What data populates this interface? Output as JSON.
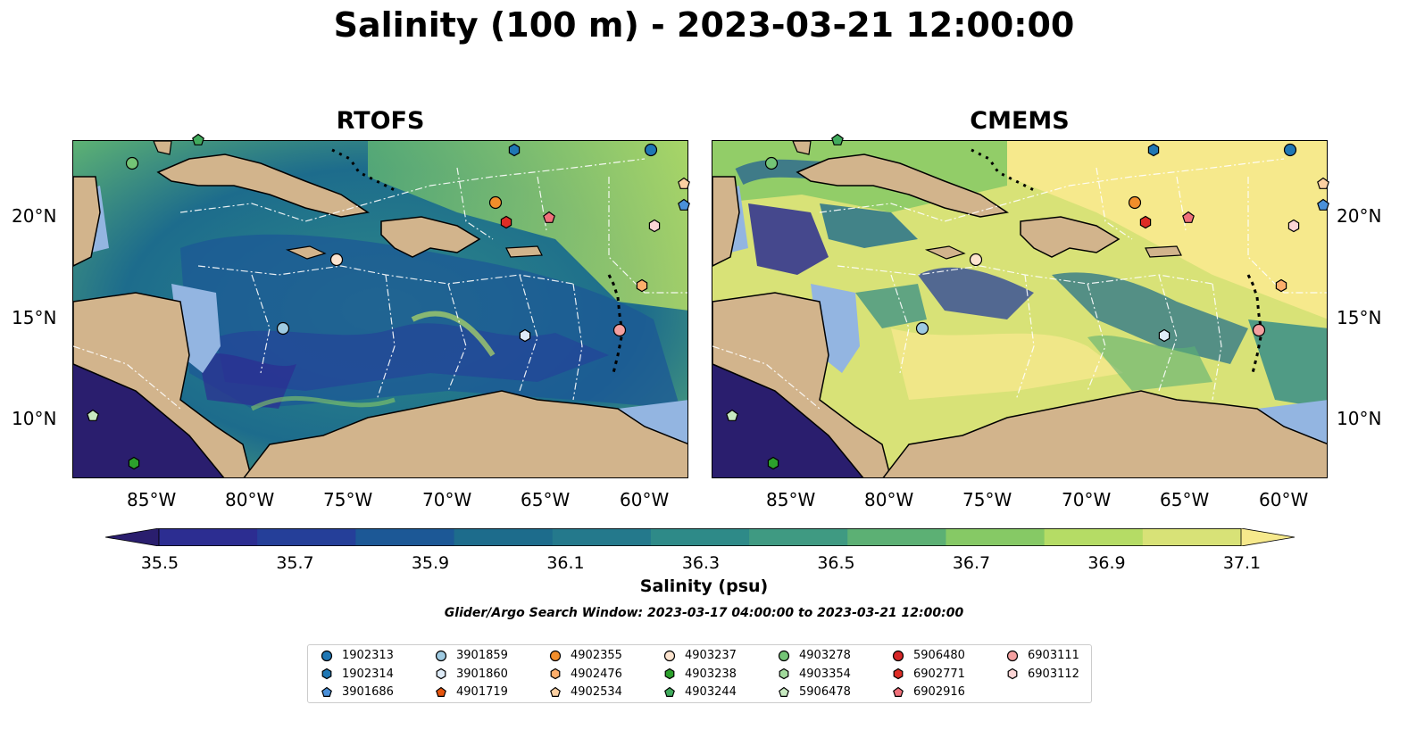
{
  "title": "Salinity (100 m) - 2023-03-21 12:00:00",
  "panels": [
    {
      "title": "RTOFS"
    },
    {
      "title": "CMEMS"
    }
  ],
  "lon_ticks": [
    "85°W",
    "80°W",
    "75°W",
    "70°W",
    "65°W",
    "60°W"
  ],
  "lat_ticks": [
    "20°N",
    "15°N",
    "10°N"
  ],
  "colorbar": {
    "label": "Salinity (psu)",
    "ticks": [
      "35.5",
      "35.7",
      "35.9",
      "36.1",
      "36.3",
      "36.5",
      "36.7",
      "36.9",
      "37.1"
    ],
    "colors": [
      "#2a1e6e",
      "#2c2d91",
      "#253f99",
      "#1c5896",
      "#1d6c8c",
      "#24798c",
      "#2e8a88",
      "#3f9a82",
      "#5cb074",
      "#86c965",
      "#b5dc65",
      "#d8e277",
      "#f6e98c"
    ]
  },
  "search_window": "Glider/Argo Search Window: 2023-03-17 04:00:00 to 2023-03-21 12:00:00",
  "legend": [
    {
      "id": "1902313",
      "shape": "circle",
      "color": "#1f77b4"
    },
    {
      "id": "1902314",
      "shape": "hexagon",
      "color": "#1f77b4"
    },
    {
      "id": "3901686",
      "shape": "pentagon",
      "color": "#4a90d9"
    },
    {
      "id": "3901859",
      "shape": "circle",
      "color": "#9ecae1"
    },
    {
      "id": "3901860",
      "shape": "hexagon",
      "color": "#deebf7"
    },
    {
      "id": "4901719",
      "shape": "pentagon",
      "color": "#e6550d"
    },
    {
      "id": "4902355",
      "shape": "circle",
      "color": "#f28e2b"
    },
    {
      "id": "4902476",
      "shape": "hexagon",
      "color": "#fdae6b"
    },
    {
      "id": "4902534",
      "shape": "pentagon",
      "color": "#fdd0a2"
    },
    {
      "id": "4903237",
      "shape": "circle",
      "color": "#fde4cf"
    },
    {
      "id": "4903238",
      "shape": "hexagon",
      "color": "#2ca02c"
    },
    {
      "id": "4903244",
      "shape": "pentagon",
      "color": "#41ab5d"
    },
    {
      "id": "4903278",
      "shape": "circle",
      "color": "#74c476"
    },
    {
      "id": "4903354",
      "shape": "hexagon",
      "color": "#a1d99b"
    },
    {
      "id": "5906478",
      "shape": "pentagon",
      "color": "#c7e9c0"
    },
    {
      "id": "5906480",
      "shape": "circle",
      "color": "#d62728"
    },
    {
      "id": "6902771",
      "shape": "hexagon",
      "color": "#de2d26"
    },
    {
      "id": "6902916",
      "shape": "pentagon",
      "color": "#f0707a"
    },
    {
      "id": "6903111",
      "shape": "circle",
      "color": "#f4a0a0"
    },
    {
      "id": "6903112",
      "shape": "hexagon",
      "color": "#fcd5d5"
    }
  ],
  "map_colors": {
    "land": "#d2b48c",
    "shallow": "#93b5e1",
    "border": "#000000"
  }
}
